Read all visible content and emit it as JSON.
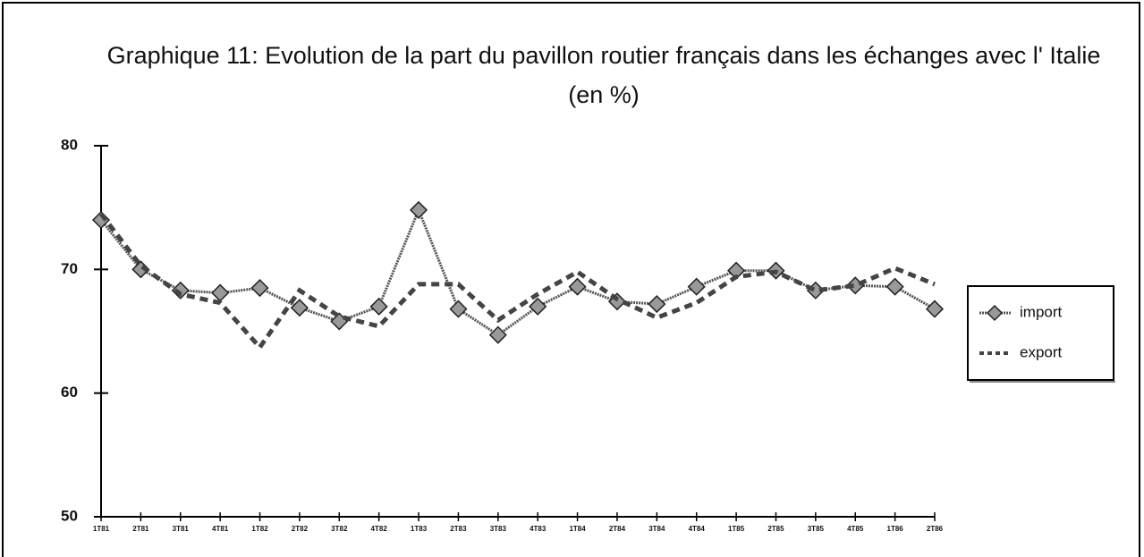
{
  "chart_data": {
    "type": "line",
    "title": "Graphique 11: Evolution de la part du pavillon routier français dans les échanges avec l' Italie (en %)",
    "categories": [
      "1T81",
      "2T81",
      "3T81",
      "4T81",
      "1T82",
      "2T82",
      "3T82",
      "4T82",
      "1T83",
      "2T83",
      "3T83",
      "4T83",
      "1T84",
      "2T84",
      "3T84",
      "4T84",
      "1T85",
      "2T85",
      "3T85",
      "4T85",
      "1T86",
      "2T86"
    ],
    "series": [
      {
        "name": "import",
        "color": "#555555",
        "values": [
          74.0,
          70.0,
          68.3,
          68.1,
          68.5,
          66.9,
          65.8,
          67.0,
          74.8,
          66.8,
          64.7,
          67.0,
          68.6,
          67.4,
          67.2,
          68.6,
          69.9,
          69.9,
          68.3,
          68.7,
          68.6,
          66.8
        ]
      },
      {
        "name": "export",
        "color": "#444444",
        "values": [
          74.5,
          70.3,
          68.0,
          67.3,
          63.7,
          68.3,
          66.2,
          65.4,
          68.8,
          68.8,
          65.9,
          68.0,
          69.8,
          67.6,
          66.1,
          67.3,
          69.4,
          69.8,
          68.3,
          68.7,
          70.1,
          68.8
        ]
      }
    ],
    "ylim": [
      50,
      80
    ],
    "yticks": [
      50,
      60,
      70,
      80
    ],
    "legend": "right"
  }
}
